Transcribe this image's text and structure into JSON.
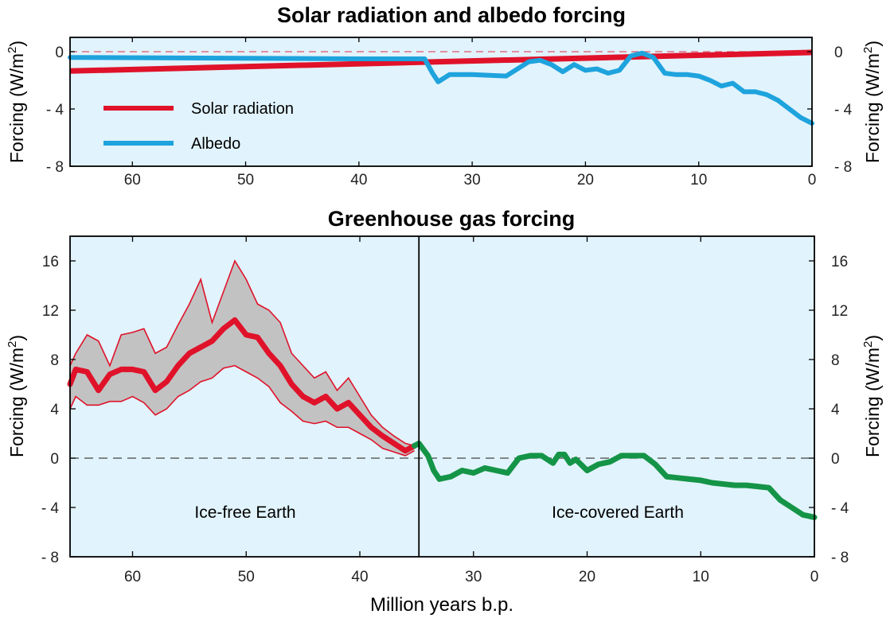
{
  "colors": {
    "panel_bg": "#e1f3fc",
    "solar": "#e0122a",
    "albedo": "#1ea3dd",
    "ghg_main": "#e0122a",
    "ghg_band": "#c2c2c2",
    "ghg_recent": "#149447",
    "zero_line_top": "#e0566a",
    "zero_line_bottom": "#444444"
  },
  "x_axis_label": "Million years b.p.",
  "chart_data": [
    {
      "type": "line",
      "title": "Solar radiation and albedo forcing",
      "ylabel_left": "Forcing (W/m",
      "ylabel_right": "Forcing (W/m",
      "ylabel_superscript": "2",
      "ylabel_close": ")",
      "xlim": [
        65.5,
        0
      ],
      "ylim": [
        -8,
        1
      ],
      "x_ticks": [
        60,
        50,
        40,
        30,
        20,
        10,
        0
      ],
      "y_ticks": [
        0,
        -4,
        -8
      ],
      "y_tick_labels": [
        "0",
        "- 4",
        "- 8"
      ],
      "zero_line": "dashed",
      "legend_placement": "left",
      "series": [
        {
          "name": "Solar radiation",
          "x": [
            65.5,
            0
          ],
          "y": [
            -1.35,
            -0.05
          ]
        },
        {
          "name": "Albedo",
          "x": [
            65.5,
            40,
            34.2,
            33.5,
            33,
            32,
            30,
            27,
            26,
            25,
            24,
            23,
            22,
            21,
            20,
            19,
            18,
            17,
            16,
            15,
            14,
            13,
            12,
            11,
            10,
            9,
            8,
            7,
            6,
            5,
            4,
            3,
            2,
            1,
            0
          ],
          "y": [
            -0.4,
            -0.5,
            -0.5,
            -1.5,
            -2.1,
            -1.6,
            -1.6,
            -1.7,
            -1.2,
            -0.7,
            -0.6,
            -0.9,
            -1.4,
            -0.9,
            -1.3,
            -1.2,
            -1.5,
            -1.3,
            -0.3,
            -0.1,
            -0.4,
            -1.5,
            -1.6,
            -1.6,
            -1.7,
            -2.0,
            -2.4,
            -2.2,
            -2.8,
            -2.8,
            -3.0,
            -3.4,
            -4.0,
            -4.6,
            -5.0
          ]
        }
      ]
    },
    {
      "type": "line",
      "title": "Greenhouse gas forcing",
      "ylabel_left": "Forcing (W/m",
      "ylabel_right": "Forcing (W/m",
      "ylabel_superscript": "2",
      "ylabel_close": ")",
      "xlim": [
        65.5,
        0
      ],
      "ylim": [
        -8,
        18
      ],
      "x_ticks": [
        60,
        50,
        40,
        30,
        20,
        10,
        0
      ],
      "y_ticks": [
        16,
        12,
        8,
        4,
        0,
        -4,
        -8
      ],
      "y_tick_labels": [
        "16",
        "12",
        "8",
        "4",
        "0",
        "- 4",
        "- 8"
      ],
      "zero_line": "dashed",
      "divider_x": 34.8,
      "annotations": [
        "Ice-free Earth",
        "Ice-covered Earth"
      ],
      "series": [
        {
          "name": "",
          "band": "upper",
          "x": [
            65.5,
            65,
            64,
            63,
            62,
            61,
            60,
            59,
            58,
            57,
            56,
            55,
            54,
            53,
            52,
            51,
            50,
            49,
            48,
            47,
            46,
            45,
            44,
            43,
            42,
            41,
            40,
            39,
            38,
            37,
            36,
            35.2
          ],
          "y": [
            7.5,
            8.5,
            10.0,
            9.5,
            7.5,
            10.0,
            10.2,
            10.5,
            8.5,
            9.0,
            10.8,
            12.5,
            14.5,
            11.0,
            13.5,
            16.0,
            14.5,
            12.5,
            12.0,
            11.0,
            8.5,
            7.5,
            6.5,
            7.0,
            5.5,
            6.5,
            5.0,
            3.5,
            2.5,
            1.8,
            1.2,
            1.0
          ]
        },
        {
          "name": "",
          "band": "mid",
          "x": [
            65.5,
            65,
            64,
            63,
            62,
            61,
            60,
            59,
            58,
            57,
            56,
            55,
            54,
            53,
            52,
            51,
            50,
            49,
            48,
            47,
            46,
            45,
            44,
            43,
            42,
            41,
            40,
            39,
            38,
            37,
            36,
            35.2
          ],
          "y": [
            6.0,
            7.2,
            7.0,
            5.5,
            6.8,
            7.2,
            7.2,
            7.0,
            5.5,
            6.2,
            7.5,
            8.5,
            9.0,
            9.5,
            10.5,
            11.2,
            10.0,
            9.8,
            8.5,
            7.5,
            6.0,
            5.0,
            4.5,
            5.0,
            4.0,
            4.5,
            3.5,
            2.5,
            1.8,
            1.2,
            0.6,
            1.0
          ]
        },
        {
          "name": "",
          "band": "lower",
          "x": [
            65.5,
            65,
            64,
            63,
            62,
            61,
            60,
            59,
            58,
            57,
            56,
            55,
            54,
            53,
            52,
            51,
            50,
            49,
            48,
            47,
            46,
            45,
            44,
            43,
            42,
            41,
            40,
            39,
            38,
            37,
            36,
            35.2
          ],
          "y": [
            4.0,
            5.0,
            4.3,
            4.3,
            4.6,
            4.6,
            5.0,
            4.5,
            3.5,
            4.0,
            5.0,
            5.5,
            6.2,
            6.5,
            7.3,
            7.5,
            7.0,
            6.5,
            5.8,
            4.5,
            3.8,
            3.0,
            2.8,
            3.0,
            2.5,
            2.5,
            2.0,
            1.5,
            0.8,
            0.5,
            0.2,
            0.6
          ]
        },
        {
          "name": "",
          "segment": "recent",
          "x": [
            35.2,
            34.8,
            34,
            33.5,
            33,
            32,
            31,
            30,
            29,
            28,
            27,
            26,
            25,
            24,
            23,
            22.5,
            22,
            21.5,
            21,
            20,
            19,
            18,
            17,
            16,
            15,
            14,
            13,
            12,
            11,
            10,
            9,
            8,
            7,
            6,
            5,
            4,
            3,
            2,
            1,
            0
          ],
          "y": [
            1.0,
            1.2,
            0.2,
            -1.0,
            -1.7,
            -1.5,
            -1.0,
            -1.2,
            -0.8,
            -1.0,
            -1.2,
            0.0,
            0.2,
            0.2,
            -0.4,
            0.3,
            0.3,
            -0.4,
            -0.1,
            -1.0,
            -0.5,
            -0.3,
            0.2,
            0.2,
            0.2,
            -0.5,
            -1.5,
            -1.6,
            -1.7,
            -1.8,
            -2.0,
            -2.1,
            -2.2,
            -2.2,
            -2.3,
            -2.4,
            -3.4,
            -4.0,
            -4.6,
            -4.8
          ]
        }
      ]
    }
  ]
}
